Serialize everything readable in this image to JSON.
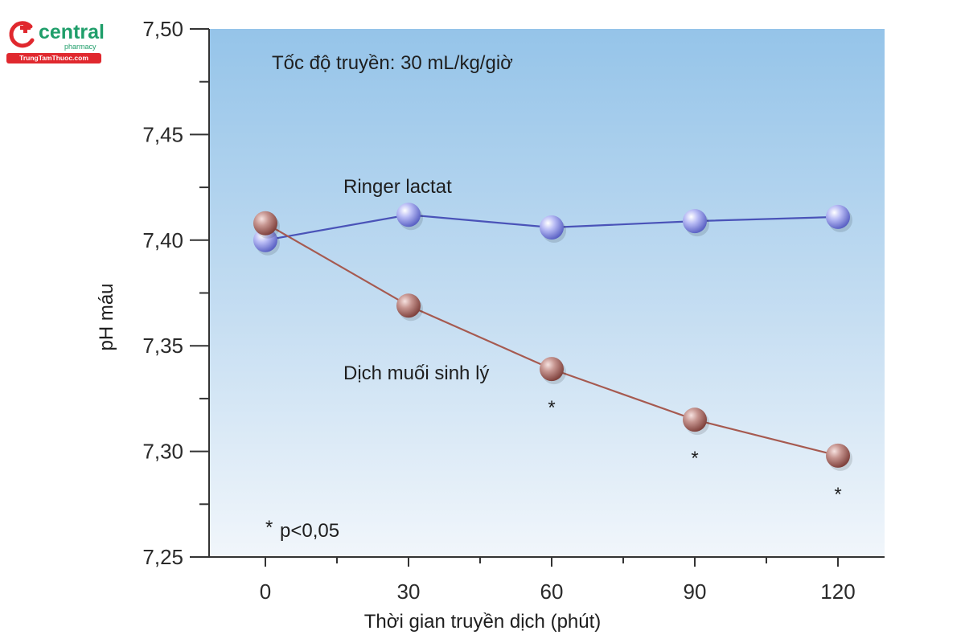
{
  "logo": {
    "name": "central",
    "sub": "pharmacy",
    "site": "TrungTamThuoc.com"
  },
  "chart_data": {
    "type": "line",
    "x": [
      0,
      30,
      60,
      90,
      120
    ],
    "xticks": [
      "0",
      "30",
      "60",
      "90",
      "120"
    ],
    "yticks": [
      "7,25",
      "7,30",
      "7,35",
      "7,40",
      "7,45",
      "7,50"
    ],
    "ylim": [
      7.25,
      7.5
    ],
    "xlim": [
      -10,
      130
    ],
    "xlabel": "Thời gian truyền dịch (phút)",
    "ylabel": "pH máu",
    "subtitle": "Tốc độ truyền: 30 mL/kg/giờ",
    "series": [
      {
        "name": "Ringer lactat",
        "values": [
          7.4,
          7.412,
          7.406,
          7.409,
          7.411
        ],
        "color": "#4a53b8",
        "marker": "#9fa3ee"
      },
      {
        "name": "Dịch muối sinh lý",
        "values": [
          7.408,
          7.369,
          7.339,
          7.315,
          7.298
        ],
        "color": "#a65a50",
        "marker": "#b98580"
      }
    ],
    "significance_marks": [
      {
        "x": 60,
        "symbol": "*"
      },
      {
        "x": 90,
        "symbol": "*"
      },
      {
        "x": 120,
        "symbol": "*"
      }
    ],
    "annotations": {
      "star": "*",
      "pvalue": "p<0,05"
    }
  }
}
